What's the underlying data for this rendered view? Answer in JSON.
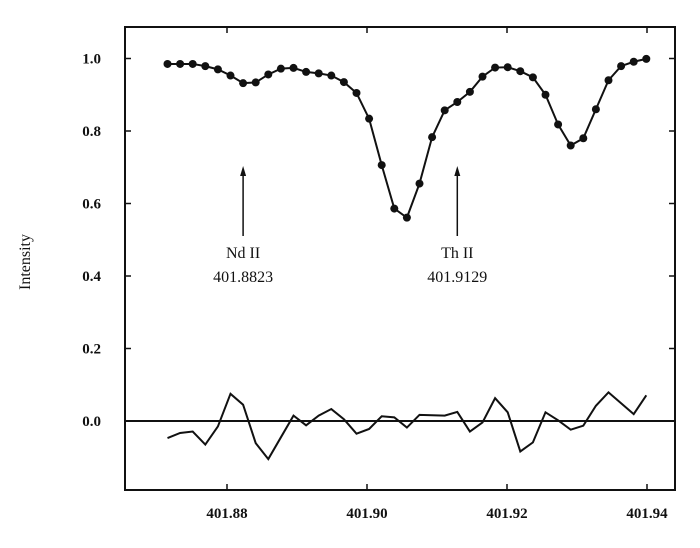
{
  "chart_data": {
    "type": "line",
    "title": "",
    "xlabel": "",
    "ylabel": "Intensity",
    "xlim": [
      401.868,
      401.9435
    ],
    "ylim": [
      -0.19,
      1.09
    ],
    "grid": false,
    "x_ticks": [
      "401.88",
      "401.90",
      "401.92",
      "401.94"
    ],
    "y_ticks": [
      "1.0",
      "0.8",
      "0.6",
      "0.4",
      "0.2",
      "0.0"
    ],
    "x_start": 401.8715,
    "x_step": 0.0018,
    "series": [
      {
        "style": "line-with-markers",
        "values": [
          0.985,
          0.985,
          0.985,
          0.979,
          0.97,
          0.953,
          0.932,
          0.934,
          0.956,
          0.972,
          0.974,
          0.963,
          0.959,
          0.953,
          0.935,
          0.905,
          0.834,
          0.706,
          0.586,
          0.561,
          0.655,
          0.783,
          0.857,
          0.88,
          0.908,
          0.95,
          0.975,
          0.976,
          0.965,
          0.948,
          0.9,
          0.818,
          0.76,
          0.78,
          0.86,
          0.94,
          0.979,
          0.991,
          0.999
        ]
      },
      {
        "style": "line",
        "values": [
          -0.047,
          -0.033,
          -0.029,
          -0.065,
          -0.015,
          0.075,
          0.045,
          -0.061,
          -0.105,
          -0.045,
          0.015,
          -0.012,
          0.015,
          0.033,
          0.005,
          -0.035,
          -0.022,
          0.013,
          0.01,
          -0.018,
          0.017,
          0.016,
          0.015,
          0.025,
          -0.029,
          -0.004,
          0.063,
          0.024,
          -0.084,
          -0.059,
          0.024,
          0.002,
          -0.024,
          -0.013,
          0.042,
          0.079,
          0.049,
          0.019,
          0.071
        ]
      }
    ],
    "reference_line_y": 0.0,
    "annotations": [
      {
        "label": "Nd II",
        "value_text": "401.8823",
        "x": 401.8823
      },
      {
        "label": "Th II",
        "value_text": "401.9129",
        "x": 401.9129
      }
    ]
  }
}
